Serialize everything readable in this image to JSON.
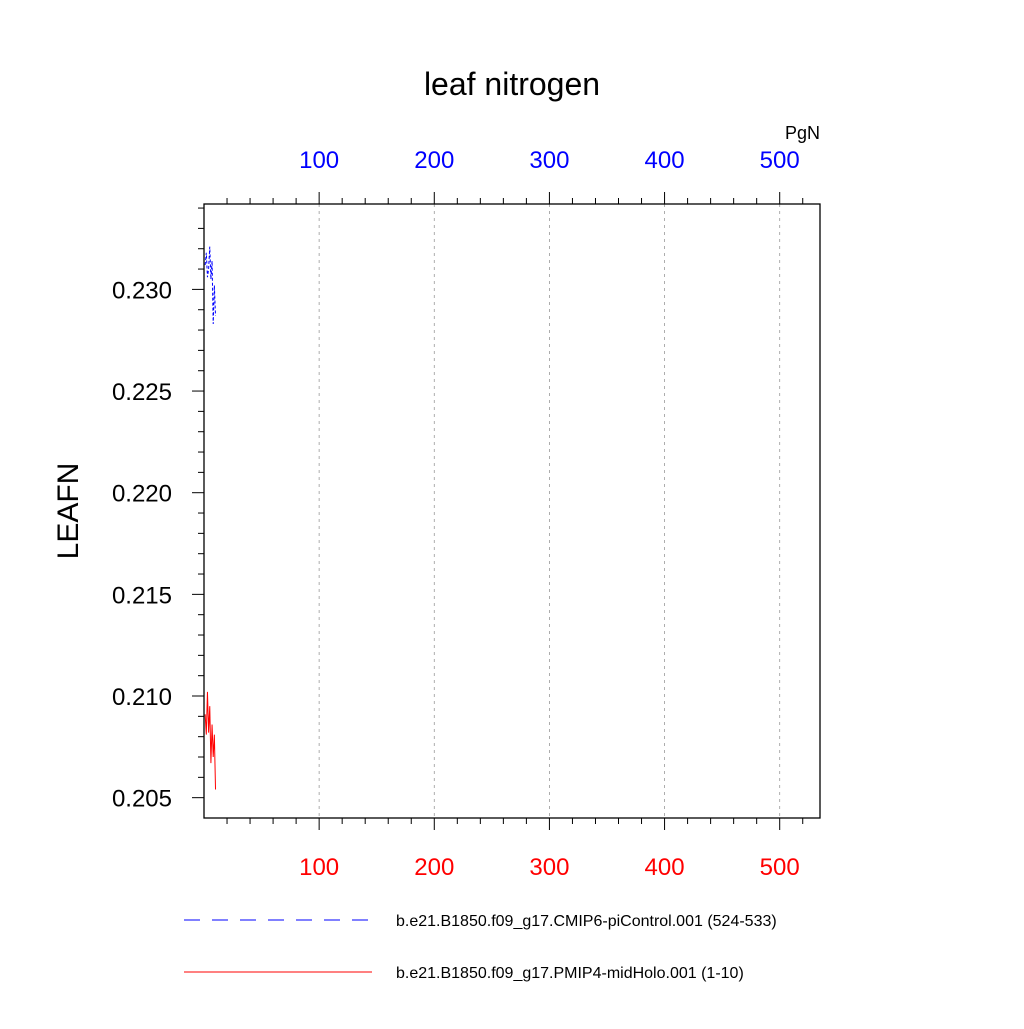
{
  "chart_data": {
    "type": "line",
    "title": "leaf nitrogen",
    "ylabel": "LEAFN",
    "top_axis_unit": "PgN",
    "xlim": [
      0,
      535
    ],
    "ylim": [
      0.204,
      0.2342
    ],
    "x_ticks": [
      100,
      200,
      300,
      400,
      500
    ],
    "y_ticks": [
      0.205,
      0.21,
      0.215,
      0.22,
      0.225,
      0.23
    ],
    "y_tick_labels": [
      "0.205",
      "0.210",
      "0.215",
      "0.220",
      "0.225",
      "0.230"
    ],
    "top_tick_color": "#0000ff",
    "bottom_tick_color": "#ff0000",
    "grid": "vertical dashed",
    "legend_placement": "bottom",
    "series": [
      {
        "name": "b.e21.B1850.f09_g17.CMIP6-piControl.001 (524-533)",
        "color": "#0000ff",
        "style": "dashed",
        "x": [
          1,
          2,
          3,
          4,
          5,
          6,
          7,
          8,
          9,
          10
        ],
        "values": [
          0.2312,
          0.2318,
          0.2306,
          0.231,
          0.2321,
          0.2305,
          0.2314,
          0.2283,
          0.2302,
          0.2287
        ]
      },
      {
        "name": "b.e21.B1850.f09_g17.PMIP4-midHolo.001 (1-10)",
        "color": "#ff0000",
        "style": "solid",
        "x": [
          1,
          2,
          3,
          4,
          5,
          6,
          7,
          8,
          9,
          10
        ],
        "values": [
          0.2091,
          0.2081,
          0.2102,
          0.2082,
          0.2095,
          0.2067,
          0.2086,
          0.207,
          0.2081,
          0.2054
        ]
      }
    ]
  }
}
